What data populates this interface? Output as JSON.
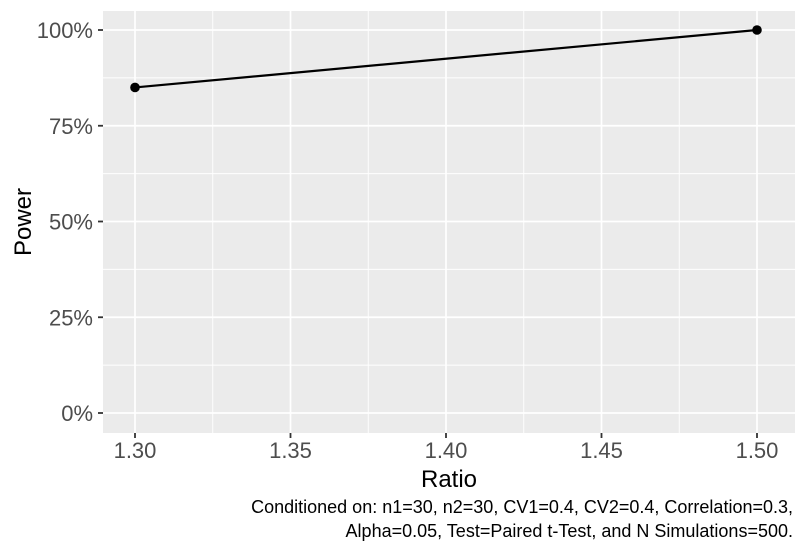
{
  "chart_data": {
    "type": "line",
    "title": "",
    "xlabel": "Ratio",
    "ylabel": "Power",
    "x": [
      1.3,
      1.5
    ],
    "series": [
      {
        "name": "Power",
        "values_percent": [
          85,
          100
        ]
      }
    ],
    "x_ticks": [
      {
        "value": 1.3,
        "label": "1.30"
      },
      {
        "value": 1.35,
        "label": "1.35"
      },
      {
        "value": 1.4,
        "label": "1.40"
      },
      {
        "value": 1.45,
        "label": "1.45"
      },
      {
        "value": 1.5,
        "label": "1.50"
      }
    ],
    "y_ticks": [
      {
        "value": 0,
        "label": "0%"
      },
      {
        "value": 25,
        "label": "25%"
      },
      {
        "value": 50,
        "label": "50%"
      },
      {
        "value": 75,
        "label": "75%"
      },
      {
        "value": 100,
        "label": "100%"
      }
    ],
    "x_minor": [
      1.325,
      1.375,
      1.425,
      1.475
    ],
    "y_minor_percent": [
      12.5,
      37.5,
      62.5,
      87.5
    ],
    "xlim": [
      1.29,
      1.512
    ],
    "ylim_percent": [
      -4.5,
      104.5
    ],
    "grid": true,
    "legend": "none",
    "style": {
      "panel_bg": "#EBEBEB",
      "grid_color": "#FFFFFF",
      "line_color": "#000000",
      "point_color": "#000000",
      "tick_mark_color": "#333333",
      "tick_label_color": "#4D4D4D",
      "axis_title_color": "#000000",
      "caption_color": "#000000"
    }
  },
  "caption": {
    "line1": "Conditioned on: n1=30, n2=30, CV1=0.4, CV2=0.4, Correlation=0.3,",
    "line2": "Alpha=0.05, Test=Paired t-Test, and N Simulations=500."
  }
}
